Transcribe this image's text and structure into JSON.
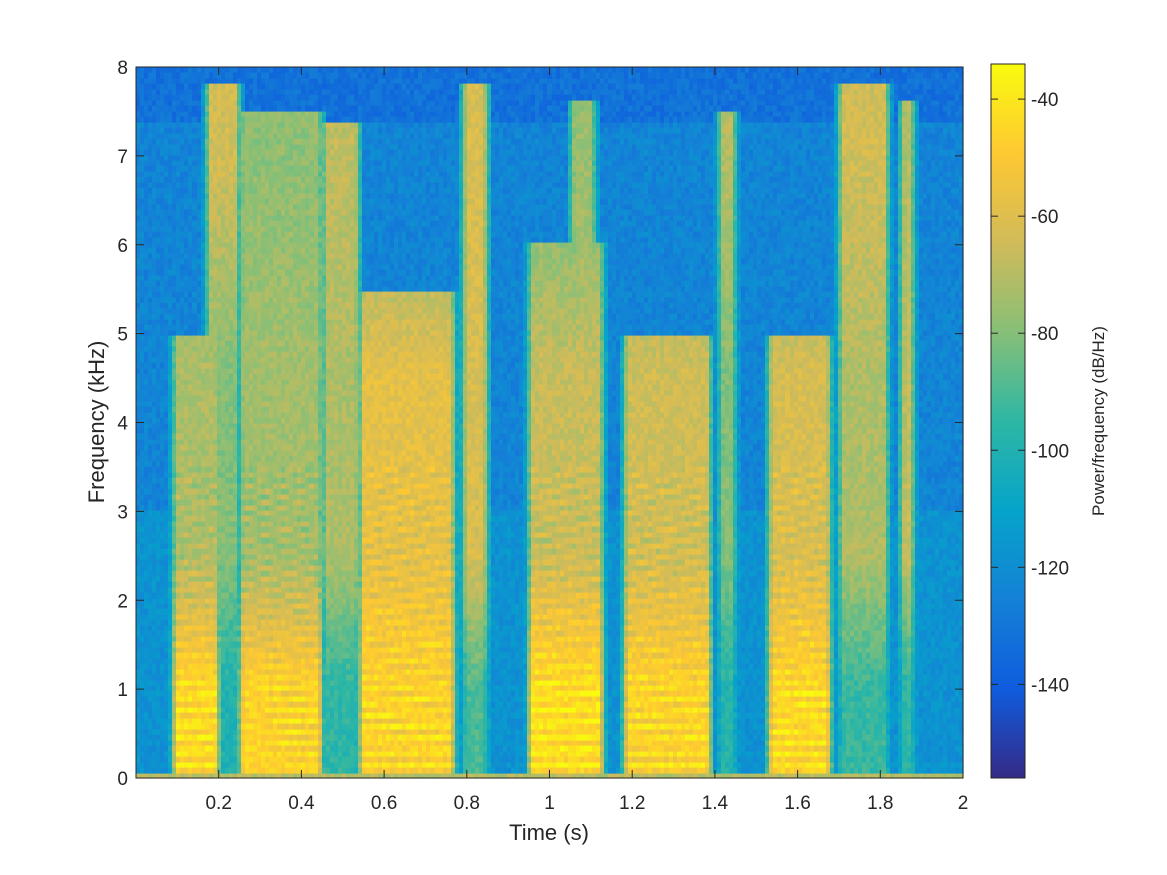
{
  "chart_data": {
    "type": "heatmap",
    "title": "",
    "xlabel": "Time (s)",
    "ylabel": "Frequency (kHz)",
    "xlim": [
      0,
      2
    ],
    "ylim": [
      0,
      8
    ],
    "xticks": [
      0.2,
      0.4,
      0.6,
      0.8,
      1,
      1.2,
      1.4,
      1.6,
      1.8,
      2
    ],
    "xtick_labels": [
      "0.2",
      "0.4",
      "0.6",
      "0.8",
      "1",
      "1.2",
      "1.4",
      "1.6",
      "1.8",
      "2"
    ],
    "yticks": [
      0,
      1,
      2,
      3,
      4,
      5,
      6,
      7,
      8
    ],
    "ytick_labels": [
      "0",
      "1",
      "2",
      "3",
      "4",
      "5",
      "6",
      "7",
      "8"
    ],
    "colorbar": {
      "label": "Power/frequency (dB/Hz)",
      "clim": [
        -156,
        -34
      ],
      "ticks": [
        -40,
        -60,
        -80,
        -100,
        -120,
        -140
      ],
      "tick_labels": [
        "-40",
        "-60",
        "-80",
        "-100",
        "-120",
        "-140"
      ],
      "colormap": "parula"
    },
    "colormap_stops": [
      "#352a87",
      "#0f5cdd",
      "#1481d6",
      "#06a4ca",
      "#2eb7a4",
      "#87bf77",
      "#d1bb59",
      "#fec832",
      "#f9fb0e"
    ],
    "noise_floor_db": -118,
    "segments": [
      {
        "t0": 0.08,
        "t1": 0.21,
        "f0_hz": 150,
        "low_db": -44,
        "mid_db": -72,
        "high_db": -80,
        "fmax_khz": 5.0
      },
      {
        "t0": 0.16,
        "t1": 0.26,
        "f0_hz": 0,
        "low_db": -100,
        "mid_db": -80,
        "high_db": -64,
        "fmax_khz": 7.8
      },
      {
        "t0": 0.24,
        "t1": 0.46,
        "f0_hz": 120,
        "low_db": -46,
        "mid_db": -74,
        "high_db": -78,
        "fmax_khz": 7.5
      },
      {
        "t0": 0.44,
        "t1": 0.55,
        "f0_hz": 0,
        "low_db": -96,
        "mid_db": -72,
        "high_db": -68,
        "fmax_khz": 7.4
      },
      {
        "t0": 0.53,
        "t1": 0.78,
        "f0_hz": 140,
        "low_db": -46,
        "mid_db": -58,
        "high_db": -84,
        "fmax_khz": 5.5
      },
      {
        "t0": 0.78,
        "t1": 0.86,
        "f0_hz": 0,
        "low_db": -90,
        "mid_db": -62,
        "high_db": -62,
        "fmax_khz": 7.8
      },
      {
        "t0": 0.94,
        "t1": 1.14,
        "f0_hz": 150,
        "low_db": -42,
        "mid_db": -66,
        "high_db": -84,
        "fmax_khz": 6.0
      },
      {
        "t0": 1.04,
        "t1": 1.12,
        "f0_hz": 0,
        "low_db": -96,
        "mid_db": -70,
        "high_db": -76,
        "fmax_khz": 7.6
      },
      {
        "t0": 1.17,
        "t1": 1.4,
        "f0_hz": 140,
        "low_db": -46,
        "mid_db": -64,
        "high_db": -82,
        "fmax_khz": 5.0
      },
      {
        "t0": 1.4,
        "t1": 1.46,
        "f0_hz": 0,
        "low_db": -98,
        "mid_db": -80,
        "high_db": -70,
        "fmax_khz": 7.5
      },
      {
        "t0": 1.52,
        "t1": 1.69,
        "f0_hz": 130,
        "low_db": -44,
        "mid_db": -62,
        "high_db": -86,
        "fmax_khz": 5.0
      },
      {
        "t0": 1.69,
        "t1": 1.83,
        "f0_hz": 0,
        "low_db": -94,
        "mid_db": -72,
        "high_db": -64,
        "fmax_khz": 7.8
      },
      {
        "t0": 1.84,
        "t1": 1.89,
        "f0_hz": 0,
        "low_db": -96,
        "mid_db": -66,
        "high_db": -70,
        "fmax_khz": 7.6
      }
    ]
  }
}
